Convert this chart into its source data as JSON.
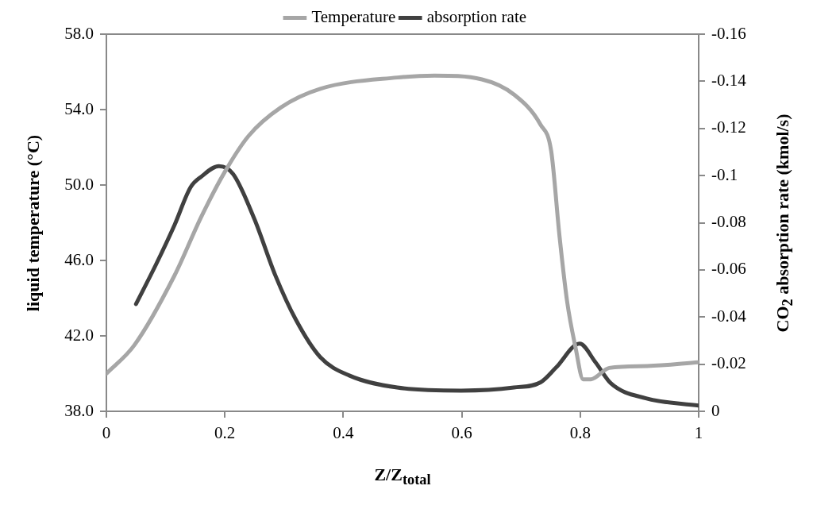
{
  "chart_data": {
    "type": "line",
    "xlabel": "Z/Z$_{total}$",
    "ylabel": "liquid temperature (°C)",
    "y2label": "CO$_{2}$ absorption rate (kmol/s)",
    "xlim": [
      0,
      1
    ],
    "xticks": [
      0,
      0.2,
      0.4,
      0.6,
      0.8,
      1
    ],
    "ylim": [
      38,
      58
    ],
    "yticks": [
      {
        "value": 38,
        "label": "38.0"
      },
      {
        "value": 42,
        "label": "42.0"
      },
      {
        "value": 46,
        "label": "46.0"
      },
      {
        "value": 50,
        "label": "50.0"
      },
      {
        "value": 54,
        "label": "54.0"
      },
      {
        "value": 58,
        "label": "58.0"
      }
    ],
    "y2lim": [
      0,
      -0.16
    ],
    "y2ticks": [
      0,
      -0.02,
      -0.04,
      -0.06,
      -0.08,
      -0.1,
      -0.12,
      -0.14,
      -0.16
    ],
    "legend": "top",
    "grid": false,
    "marker": "none",
    "line_style": "solid",
    "series": [
      {
        "name": "Temperature",
        "color": "#a6a6a6",
        "x": [
          0,
          0.047,
          0.115,
          0.16,
          0.2,
          0.24,
          0.294,
          0.361,
          0.491,
          0.554,
          0.634,
          0.688,
          0.733,
          0.751,
          0.765,
          0.778,
          0.792,
          0.805,
          0.818,
          0.849,
          0.913,
          1
        ],
        "values": [
          40.0,
          41.5,
          45.2,
          48.3,
          50.7,
          52.6,
          54.1,
          55.1,
          55.7,
          55.8,
          55.6,
          54.8,
          53.2,
          51.8,
          47.3,
          43.8,
          41.4,
          39.7,
          39.7,
          40.3,
          40.4,
          40.6
        ]
      },
      {
        "name": "absorption rate",
        "color": "#404040",
        "axis": "y2",
        "x": [
          0.05,
          0.084,
          0.115,
          0.142,
          0.16,
          0.19,
          0.214,
          0.25,
          0.285,
          0.32,
          0.361,
          0.41,
          0.491,
          0.599,
          0.688,
          0.733,
          0.759,
          0.799,
          0.826,
          0.852,
          0.911,
          1
        ],
        "values": [
          -0.0455,
          -0.0624,
          -0.079,
          -0.095,
          -0.0995,
          -0.104,
          -0.1006,
          -0.0815,
          -0.0578,
          -0.0388,
          -0.023,
          -0.0152,
          -0.0101,
          -0.0088,
          -0.0101,
          -0.0123,
          -0.0185,
          -0.0287,
          -0.0207,
          -0.0118,
          -0.0055,
          -0.0024
        ]
      }
    ]
  }
}
